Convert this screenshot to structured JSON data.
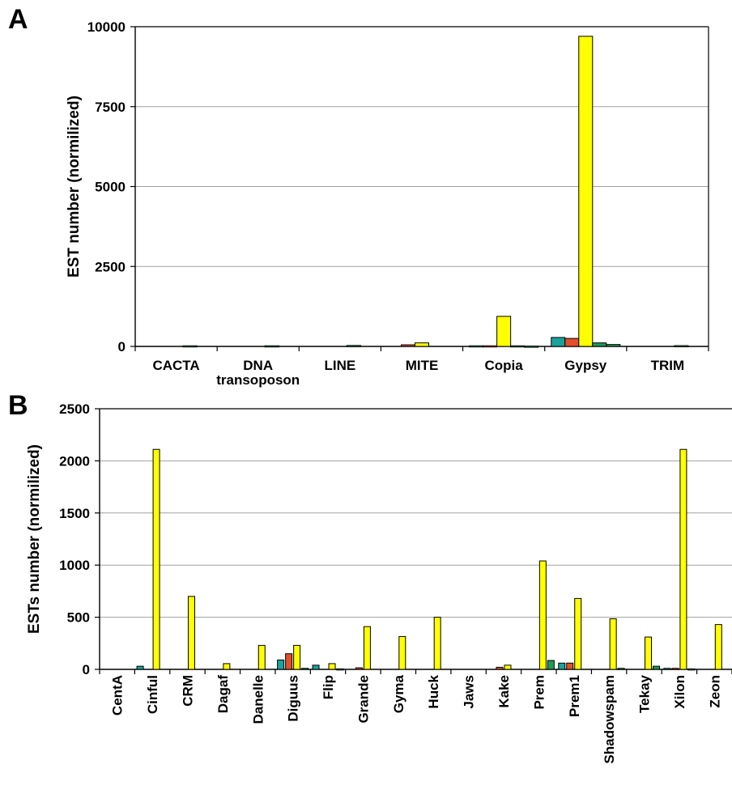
{
  "colors": {
    "teal": "#1aa39a",
    "red": "#e2502a",
    "yellow": "#ffff00",
    "green": "#1f9b57",
    "gridline": "#a0a0a0",
    "bar_stroke": "#000000"
  },
  "chart_data": [
    {
      "panel_label": "A",
      "type": "bar",
      "ylabel": "EST number (normilized)",
      "ylim": [
        0,
        10000
      ],
      "yticks": [
        "0",
        "2500",
        "5000",
        "7500",
        "10000"
      ],
      "ytick_values": [
        0,
        2500,
        5000,
        7500,
        10000
      ],
      "grid": true,
      "legend": "none",
      "categories": [
        [
          "CACTA"
        ],
        [
          "DNA",
          "transoposon"
        ],
        [
          "LINE"
        ],
        [
          "MITE"
        ],
        [
          "Copia"
        ],
        [
          "Gypsy"
        ],
        [
          "TRIM"
        ]
      ],
      "series": [
        {
          "color_key": "teal",
          "values": [
            0,
            0,
            0,
            0,
            20,
            280,
            0
          ]
        },
        {
          "color_key": "red",
          "values": [
            0,
            0,
            0,
            50,
            20,
            250,
            0
          ]
        },
        {
          "color_key": "yellow",
          "values": [
            0,
            0,
            0,
            110,
            940,
            9700,
            0
          ]
        },
        {
          "color_key": "green",
          "values": [
            20,
            20,
            30,
            0,
            20,
            110,
            25
          ]
        },
        {
          "color_key": "green",
          "values": [
            0,
            0,
            0,
            0,
            10,
            60,
            0
          ]
        }
      ]
    },
    {
      "panel_label": "B",
      "type": "bar",
      "ylabel": "ESTs number (normilized)",
      "ylim": [
        0,
        2500
      ],
      "yticks": [
        "0",
        "500",
        "1000",
        "1500",
        "2000",
        "2500"
      ],
      "ytick_values": [
        0,
        500,
        1000,
        1500,
        2000,
        2500
      ],
      "grid": true,
      "legend": "none",
      "categories": [
        "CentA",
        "Cinful",
        "CRM",
        "Dagaf",
        "Danelle",
        "Diguus",
        "Flip",
        "Grande",
        "Gyma",
        "Huck",
        "Jaws",
        "Kake",
        "Prem",
        "Prem1",
        "Shadowspam",
        "Tekay",
        "Xilon",
        "Zeon"
      ],
      "series": [
        {
          "color_key": "teal",
          "values": [
            0,
            30,
            0,
            0,
            0,
            90,
            40,
            0,
            0,
            0,
            0,
            0,
            0,
            60,
            0,
            0,
            10,
            0
          ]
        },
        {
          "color_key": "red",
          "values": [
            0,
            0,
            0,
            0,
            0,
            150,
            0,
            15,
            0,
            0,
            0,
            20,
            0,
            60,
            0,
            0,
            10,
            0
          ]
        },
        {
          "color_key": "yellow",
          "values": [
            0,
            2110,
            700,
            55,
            230,
            230,
            55,
            410,
            315,
            500,
            0,
            40,
            1040,
            680,
            485,
            310,
            2110,
            430
          ]
        },
        {
          "color_key": "green",
          "values": [
            0,
            0,
            0,
            0,
            0,
            10,
            5,
            0,
            0,
            0,
            0,
            0,
            85,
            0,
            10,
            30,
            5,
            0
          ]
        }
      ]
    }
  ]
}
